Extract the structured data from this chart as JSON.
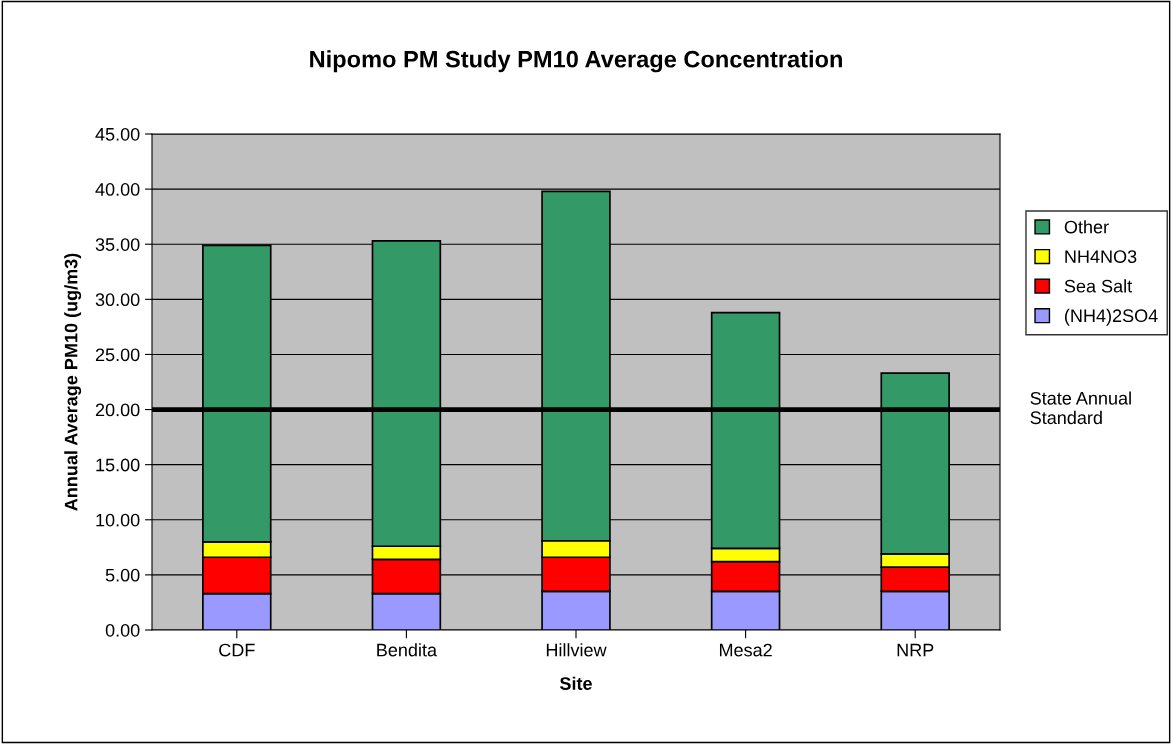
{
  "chart_data": {
    "type": "bar",
    "title": "Nipomo PM Study PM10 Average Concentration",
    "xlabel": "Site",
    "ylabel": "Annual Average PM10 (ug/m3)",
    "categories": [
      "CDF",
      "Bendita",
      "Hillview",
      "Mesa2",
      "NRP"
    ],
    "stacked": true,
    "series": [
      {
        "name": "(NH4)2SO4",
        "color": "#9999ff",
        "values": [
          3.3,
          3.3,
          3.5,
          3.5,
          3.5
        ]
      },
      {
        "name": "Sea Salt",
        "color": "#ff0000",
        "values": [
          3.3,
          3.1,
          3.1,
          2.7,
          2.2
        ]
      },
      {
        "name": "NH4NO3",
        "color": "#ffff00",
        "values": [
          1.4,
          1.2,
          1.5,
          1.2,
          1.2
        ]
      },
      {
        "name": "Other",
        "color": "#339966",
        "values": [
          26.9,
          27.7,
          31.7,
          21.4,
          16.4
        ]
      }
    ],
    "ylim": [
      0,
      45
    ],
    "yticks": [
      {
        "value": 0,
        "label": "0.00"
      },
      {
        "value": 5,
        "label": "5.00"
      },
      {
        "value": 10,
        "label": "10.00"
      },
      {
        "value": 15,
        "label": "15.00"
      },
      {
        "value": 20,
        "label": "20.00"
      },
      {
        "value": 25,
        "label": "25.00"
      },
      {
        "value": 30,
        "label": "30.00"
      },
      {
        "value": 35,
        "label": "35.00"
      },
      {
        "value": 40,
        "label": "40.00"
      },
      {
        "value": 45,
        "label": "45.00"
      }
    ],
    "ref_lines": [
      {
        "axis": "y",
        "value": 20,
        "label": "State Annual\nStandard",
        "color": "#000000"
      }
    ],
    "grid": "y",
    "legend": "right"
  }
}
